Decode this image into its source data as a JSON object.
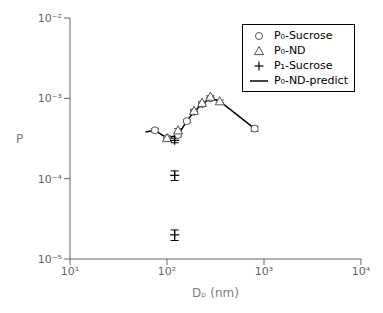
{
  "chart_data": {
    "type": "scatter",
    "xlabel": "Dₚ (nm)",
    "ylabel": "P",
    "log": true,
    "xlim": [
      10,
      10000
    ],
    "ylim": [
      1e-05,
      0.01
    ],
    "xticks": [
      {
        "value": 10,
        "label": "10¹"
      },
      {
        "value": 100,
        "label": "10²"
      },
      {
        "value": 1000,
        "label": "10³"
      },
      {
        "value": 10000,
        "label": "10⁴"
      }
    ],
    "yticks": [
      {
        "value": 1e-05,
        "label": "10⁻⁵"
      },
      {
        "value": 0.0001,
        "label": "10⁻⁴"
      },
      {
        "value": 0.001,
        "label": "10⁻³"
      },
      {
        "value": 0.01,
        "label": "10⁻²"
      }
    ],
    "grid": false,
    "legend": "upper right",
    "series": [
      {
        "name": "P₀-Sucrose",
        "type": "scatter",
        "marker": "circle",
        "color": "#555555",
        "x": [
          75,
          100,
          130,
          160,
          190,
          230,
          280,
          800
        ],
        "values": [
          0.0004,
          0.00032,
          0.00035,
          0.00052,
          0.00068,
          0.00085,
          0.001,
          0.00042
        ],
        "errors": [
          2e-05,
          2e-05,
          2e-05,
          2e-05,
          2e-05,
          2e-05,
          3e-05,
          3e-05
        ]
      },
      {
        "name": "P₀-ND",
        "type": "scatter",
        "marker": "triangle",
        "color": "#555555",
        "x": [
          100,
          130,
          190,
          230,
          280,
          350
        ],
        "values": [
          0.00032,
          0.0004,
          0.0007,
          0.00088,
          0.00105,
          0.00092
        ],
        "errors": [
          2e-05,
          2e-05,
          3e-05,
          3e-05,
          3e-05,
          3e-05
        ]
      },
      {
        "name": "P₁-Sucrose",
        "type": "scatter",
        "marker": "cross",
        "color": "#000000",
        "x": [
          120,
          120,
          120
        ],
        "values": [
          0.0003,
          0.00011,
          2e-05
        ],
        "errors": [
          2e-05,
          1.5e-05,
          3e-06
        ]
      },
      {
        "name": "P₀-ND-predict",
        "type": "line",
        "line_style": "solid",
        "color": "#000000",
        "x": [
          60,
          75,
          100,
          130,
          160,
          190,
          230,
          280,
          350,
          800
        ],
        "values": [
          0.00038,
          0.0004,
          0.00032,
          0.00035,
          0.00052,
          0.00068,
          0.00085,
          0.001,
          0.00092,
          0.00042
        ]
      }
    ]
  }
}
